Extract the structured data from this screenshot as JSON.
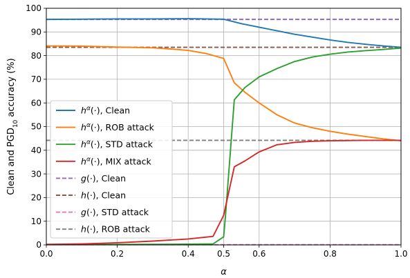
{
  "chart_data": {
    "type": "line",
    "xlabel": "α",
    "ylabel": "Clean and PGD10 accuracy (%)",
    "ylabel_parts": {
      "before": "Clean and PGD",
      "sub": "10",
      "after": " accuracy (%)"
    },
    "xlim": [
      0.0,
      1.0
    ],
    "ylim": [
      0,
      100
    ],
    "xticks": [
      0.0,
      0.2,
      0.4,
      0.5,
      0.6,
      0.8,
      1.0
    ],
    "xtick_labels": [
      "0.0",
      "0.2",
      "0.4",
      "0.5",
      "0.6",
      "0.8",
      "1.0"
    ],
    "yticks": [
      0,
      10,
      20,
      30,
      40,
      50,
      60,
      70,
      80,
      90,
      100
    ],
    "ytick_labels": [
      "0",
      "10",
      "20",
      "30",
      "40",
      "50",
      "60",
      "70",
      "80",
      "90",
      "100"
    ],
    "grid": true,
    "legend_position": "lower-left",
    "series": [
      {
        "name": "hα(·), Clean",
        "legend_parts": [
          "h",
          "α",
          "(·), Clean"
        ],
        "color": "#1f77b4",
        "style": "solid",
        "x": [
          0.0,
          0.1,
          0.2,
          0.3,
          0.4,
          0.45,
          0.5,
          0.55,
          0.6,
          0.65,
          0.7,
          0.75,
          0.8,
          0.85,
          0.9,
          0.95,
          1.0
        ],
        "y": [
          95.3,
          95.4,
          95.5,
          95.5,
          95.6,
          95.5,
          95.4,
          93.5,
          92.0,
          90.5,
          89.0,
          87.8,
          86.6,
          85.6,
          84.8,
          84.1,
          83.5
        ]
      },
      {
        "name": "hα(·), ROB attack",
        "legend_parts": [
          "h",
          "α",
          "(·), ROB attack"
        ],
        "color": "#ff7f0e",
        "style": "solid",
        "x": [
          0.0,
          0.1,
          0.2,
          0.3,
          0.35,
          0.4,
          0.45,
          0.5,
          0.53,
          0.56,
          0.6,
          0.65,
          0.7,
          0.75,
          0.8,
          0.85,
          0.9,
          0.95,
          1.0
        ],
        "y": [
          84.1,
          84.0,
          83.6,
          83.3,
          82.8,
          82.2,
          80.9,
          78.8,
          68.5,
          64.5,
          60.0,
          55.0,
          51.5,
          49.5,
          48.0,
          46.8,
          45.8,
          44.8,
          44.0
        ]
      },
      {
        "name": "hα(·), STD attack",
        "legend_parts": [
          "h",
          "α",
          "(·), STD attack"
        ],
        "color": "#2ca02c",
        "style": "solid",
        "x": [
          0.0,
          0.2,
          0.4,
          0.47,
          0.5,
          0.505,
          0.53,
          0.56,
          0.6,
          0.65,
          0.7,
          0.75,
          0.8,
          0.85,
          0.9,
          0.95,
          1.0
        ],
        "y": [
          0.2,
          0.2,
          0.3,
          0.4,
          3.4,
          12.0,
          61.3,
          66.5,
          71.0,
          74.5,
          77.5,
          79.4,
          80.6,
          81.5,
          82.1,
          82.6,
          83.2
        ]
      },
      {
        "name": "hα(·), MIX attack",
        "legend_parts": [
          "h",
          "α",
          "(·), MIX attack"
        ],
        "color": "#d62728",
        "style": "solid",
        "x": [
          0.0,
          0.1,
          0.2,
          0.3,
          0.4,
          0.47,
          0.5,
          0.53,
          0.56,
          0.6,
          0.65,
          0.7,
          0.75,
          0.8,
          0.85,
          0.9,
          0.95,
          1.0
        ],
        "y": [
          0.2,
          0.4,
          0.9,
          1.6,
          2.5,
          3.6,
          12.5,
          33.0,
          35.5,
          39.3,
          42.3,
          43.3,
          43.8,
          44.0,
          44.1,
          44.2,
          44.2,
          44.2
        ]
      },
      {
        "name": "g(·), Clean",
        "legend_parts": [
          "g",
          "",
          "(·), Clean"
        ],
        "color": "#9467bd",
        "style": "dashed",
        "x": [
          0.0,
          1.0
        ],
        "y": [
          95.3,
          95.3
        ]
      },
      {
        "name": "h(·), Clean",
        "legend_parts": [
          "h",
          "",
          "(·), Clean"
        ],
        "color": "#8c564b",
        "style": "dashed",
        "x": [
          0.0,
          1.0
        ],
        "y": [
          83.5,
          83.5
        ]
      },
      {
        "name": "g(·), STD attack",
        "legend_parts": [
          "g",
          "",
          "(·), STD attack"
        ],
        "color": "#e377c2",
        "style": "dashed",
        "x": [
          0.0,
          1.0
        ],
        "y": [
          0.1,
          0.1
        ]
      },
      {
        "name": "h(·), ROB attack",
        "legend_parts": [
          "h",
          "",
          "(·), ROB attack"
        ],
        "color": "#7f7f7f",
        "style": "dashed",
        "x": [
          0.0,
          1.0
        ],
        "y": [
          44.2,
          44.2
        ]
      }
    ]
  }
}
